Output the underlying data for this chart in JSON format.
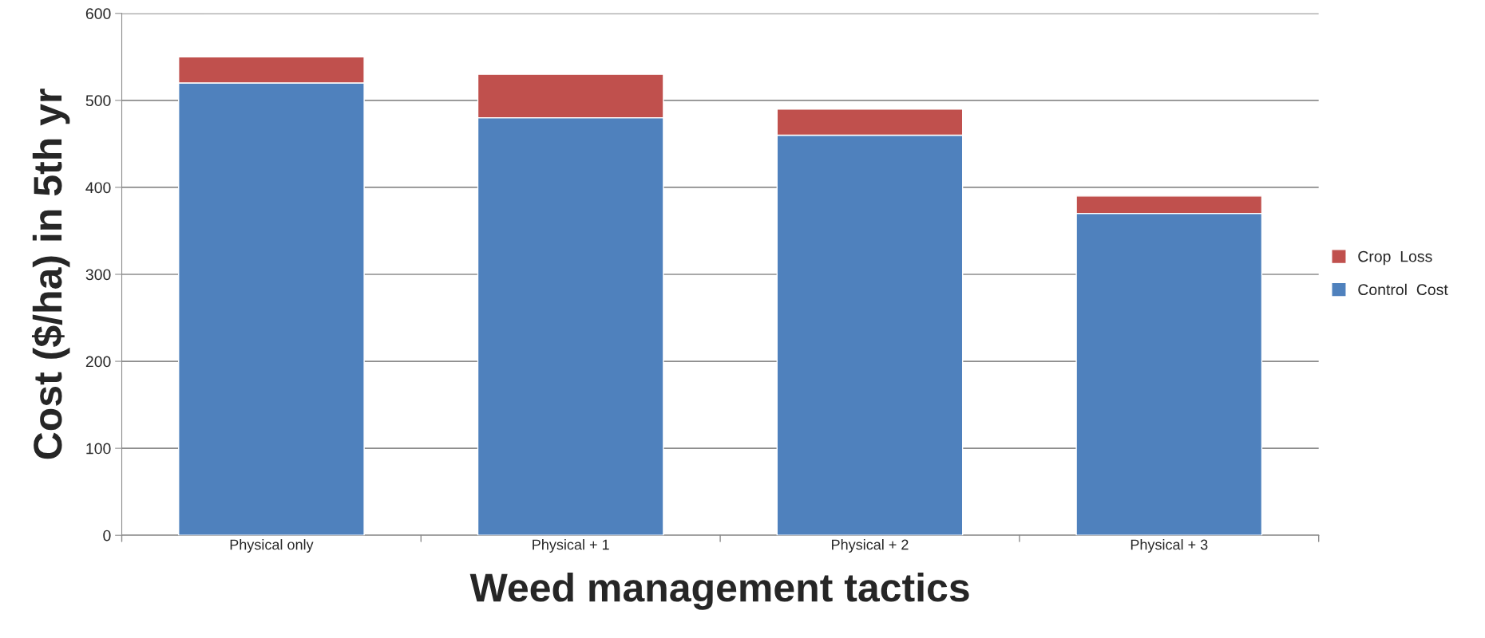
{
  "chart_data": {
    "type": "bar",
    "stacked": true,
    "xlabel": "Weed management tactics",
    "ylabel": "Cost ($/ha) in 5th yr",
    "categories": [
      "Physical only",
      "Physical + 1",
      "Physical + 2",
      "Physical + 3"
    ],
    "series": [
      {
        "name": "Control  Cost",
        "color": "#4f81bd",
        "values": [
          520,
          480,
          460,
          370
        ]
      },
      {
        "name": "Crop  Loss",
        "color": "#c0504d",
        "values": [
          30,
          50,
          30,
          20
        ]
      }
    ],
    "ylim": [
      0,
      600
    ],
    "yticks": [
      0,
      100,
      200,
      300,
      400,
      500,
      600
    ],
    "grid": "y",
    "legend": "right"
  }
}
